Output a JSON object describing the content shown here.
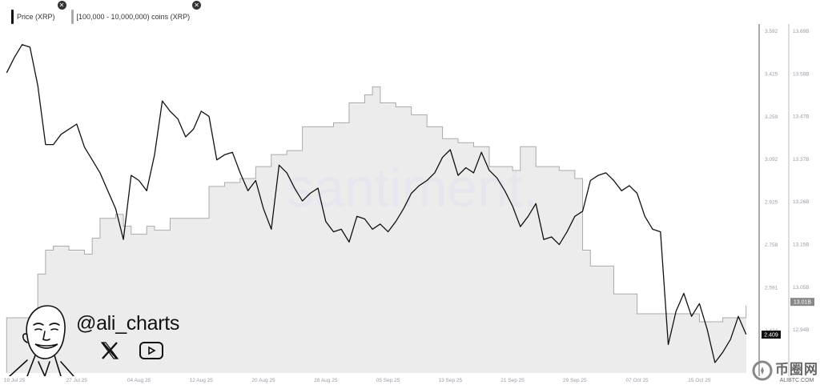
{
  "legend": [
    {
      "label": "Price (XRP)",
      "color": "#111111"
    },
    {
      "label": "[100,000 - 10,000,000) coins (XRP)",
      "color": "#aaaaaa"
    }
  ],
  "watermark": "santiment.",
  "branding": {
    "handle": "@ali_charts",
    "icons": [
      "x-logo-icon",
      "youtube-icon"
    ]
  },
  "site_logo": {
    "chinese": "币圈网",
    "domain": "ALIBTC.COM"
  },
  "chart_data": {
    "type": "line",
    "x_ticks": [
      "19 Jul 25",
      "27 Jul 25",
      "04 Aug 25",
      "12 Aug 25",
      "20 Aug 25",
      "28 Aug 25",
      "05 Sep 25",
      "13 Sep 25",
      "21 Sep 25",
      "29 Sep 25",
      "07 Oct 25",
      "15 Oct 25"
    ],
    "y_left_ticks": [
      "3.592",
      "3.425",
      "3.259",
      "3.092",
      "2.925",
      "2.758",
      "2.591",
      "2.424"
    ],
    "y_right_ticks": [
      "13.69B",
      "13.58B",
      "13.47B",
      "13.37B",
      "13.26B",
      "13.15B",
      "13.05B",
      "12.94B"
    ],
    "y_left_range": [
      2.26,
      3.592
    ],
    "y_right_range_billions": [
      12.83,
      13.69
    ],
    "grid": false,
    "legend_placement": "top-left",
    "current_price_label": "2.409",
    "current_coins_label": "13.01B",
    "series": [
      {
        "name": "Price (XRP)",
        "axis": "left",
        "style": "line",
        "color": "#111111",
        "dates": [
          "2025-07-18",
          "2025-07-19",
          "2025-07-20",
          "2025-07-21",
          "2025-07-22",
          "2025-07-23",
          "2025-07-24",
          "2025-07-25",
          "2025-07-26",
          "2025-07-27",
          "2025-07-28",
          "2025-07-29",
          "2025-07-30",
          "2025-07-31",
          "2025-08-01",
          "2025-08-02",
          "2025-08-03",
          "2025-08-04",
          "2025-08-05",
          "2025-08-06",
          "2025-08-07",
          "2025-08-08",
          "2025-08-09",
          "2025-08-10",
          "2025-08-11",
          "2025-08-12",
          "2025-08-13",
          "2025-08-14",
          "2025-08-15",
          "2025-08-16",
          "2025-08-17",
          "2025-08-18",
          "2025-08-19",
          "2025-08-20",
          "2025-08-21",
          "2025-08-22",
          "2025-08-23",
          "2025-08-24",
          "2025-08-25",
          "2025-08-26",
          "2025-08-27",
          "2025-08-28",
          "2025-08-29",
          "2025-08-30",
          "2025-08-31",
          "2025-09-01",
          "2025-09-02",
          "2025-09-03",
          "2025-09-04",
          "2025-09-05",
          "2025-09-06",
          "2025-09-07",
          "2025-09-08",
          "2025-09-09",
          "2025-09-10",
          "2025-09-11",
          "2025-09-12",
          "2025-09-13",
          "2025-09-14",
          "2025-09-15",
          "2025-09-16",
          "2025-09-17",
          "2025-09-18",
          "2025-09-19",
          "2025-09-20",
          "2025-09-21",
          "2025-09-22",
          "2025-09-23",
          "2025-09-24",
          "2025-09-25",
          "2025-09-26",
          "2025-09-27",
          "2025-09-28",
          "2025-09-29",
          "2025-09-30",
          "2025-10-01",
          "2025-10-02",
          "2025-10-03",
          "2025-10-04",
          "2025-10-05",
          "2025-10-06",
          "2025-10-07",
          "2025-10-08",
          "2025-10-09",
          "2025-10-10",
          "2025-10-11",
          "2025-10-12",
          "2025-10-13",
          "2025-10-14",
          "2025-10-15",
          "2025-10-16",
          "2025-10-17",
          "2025-10-18",
          "2025-10-19",
          "2025-10-20",
          "2025-10-21"
        ],
        "values": [
          3.43,
          3.49,
          3.54,
          3.53,
          3.38,
          3.15,
          3.15,
          3.19,
          3.21,
          3.23,
          3.14,
          3.09,
          3.04,
          2.97,
          2.9,
          2.78,
          3.03,
          3.01,
          2.97,
          3.11,
          3.32,
          3.28,
          3.25,
          3.18,
          3.21,
          3.28,
          3.26,
          3.09,
          3.11,
          3.12,
          3.04,
          2.97,
          3.01,
          2.9,
          2.82,
          3.07,
          3.04,
          2.98,
          2.93,
          2.96,
          2.98,
          2.85,
          2.81,
          2.82,
          2.77,
          2.87,
          2.86,
          2.82,
          2.84,
          2.81,
          2.85,
          2.9,
          2.96,
          2.99,
          3.01,
          3.04,
          3.1,
          3.13,
          3.03,
          3.06,
          3.04,
          3.12,
          3.05,
          3.02,
          2.97,
          2.91,
          2.83,
          2.87,
          2.92,
          2.78,
          2.79,
          2.76,
          2.81,
          2.87,
          2.89,
          3.01,
          3.03,
          3.04,
          3.01,
          2.97,
          2.99,
          2.96,
          2.87,
          2.82,
          2.81,
          2.37,
          2.5,
          2.57,
          2.48,
          2.53,
          2.43,
          2.3,
          2.34,
          2.39,
          2.48,
          2.41
        ]
      },
      {
        "name": "[100,000 - 10,000,000) coins (XRP)",
        "axis": "right",
        "style": "step-area",
        "color": "#aaaaaa",
        "fill": "#ececec",
        "unit": "B",
        "dates": [
          "2025-07-18",
          "2025-07-22",
          "2025-07-23",
          "2025-07-24",
          "2025-07-26",
          "2025-07-28",
          "2025-07-29",
          "2025-07-30",
          "2025-08-01",
          "2025-08-02",
          "2025-08-03",
          "2025-08-05",
          "2025-08-06",
          "2025-08-08",
          "2025-08-11",
          "2025-08-13",
          "2025-08-15",
          "2025-08-17",
          "2025-08-19",
          "2025-08-21",
          "2025-08-23",
          "2025-08-25",
          "2025-08-29",
          "2025-08-31",
          "2025-09-02",
          "2025-09-03",
          "2025-09-04",
          "2025-09-06",
          "2025-09-08",
          "2025-09-10",
          "2025-09-12",
          "2025-09-14",
          "2025-09-16",
          "2025-09-18",
          "2025-09-21",
          "2025-09-22",
          "2025-09-23",
          "2025-09-24",
          "2025-09-27",
          "2025-09-29",
          "2025-09-30",
          "2025-10-01",
          "2025-10-04",
          "2025-10-07",
          "2025-10-10",
          "2025-10-13",
          "2025-10-15",
          "2025-10-18",
          "2025-10-21"
        ],
        "values": [
          12.97,
          13.08,
          13.14,
          13.15,
          13.14,
          13.13,
          13.17,
          13.22,
          13.23,
          13.2,
          13.18,
          13.2,
          13.19,
          13.22,
          13.22,
          13.3,
          13.31,
          13.32,
          13.35,
          13.38,
          13.39,
          13.45,
          13.46,
          13.51,
          13.53,
          13.55,
          13.51,
          13.5,
          13.48,
          13.45,
          13.42,
          13.41,
          13.4,
          13.35,
          13.34,
          13.4,
          13.4,
          13.35,
          13.34,
          13.32,
          13.14,
          13.1,
          13.03,
          12.98,
          12.98,
          12.98,
          12.96,
          12.97,
          13.0
        ]
      }
    ]
  }
}
